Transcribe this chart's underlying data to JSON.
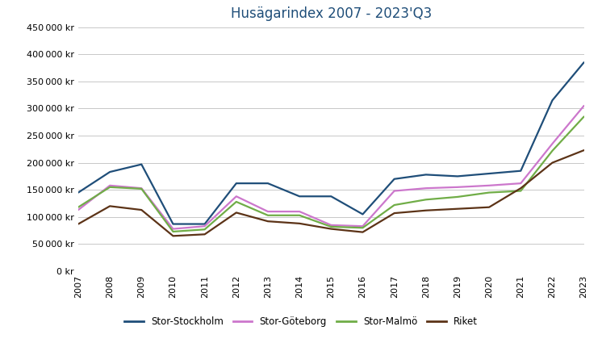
{
  "title": "Husägarindex 2007 - 2023'Q3",
  "title_color": "#1F4E79",
  "years": [
    2007,
    2008,
    2009,
    2010,
    2011,
    2012,
    2013,
    2014,
    2015,
    2016,
    2017,
    2018,
    2019,
    2020,
    2021,
    2022,
    2023
  ],
  "series": {
    "Stor-Stockholm": {
      "color": "#1F4E79",
      "values": [
        145000,
        183000,
        197000,
        87000,
        87000,
        162000,
        162000,
        138000,
        138000,
        105000,
        170000,
        178000,
        175000,
        180000,
        185000,
        315000,
        385000
      ]
    },
    "Stor-Göteborg": {
      "color": "#CC77CC",
      "values": [
        113000,
        158000,
        153000,
        78000,
        83000,
        138000,
        110000,
        110000,
        85000,
        83000,
        148000,
        153000,
        155000,
        158000,
        162000,
        235000,
        305000
      ]
    },
    "Stor-Malmö": {
      "color": "#70AD47",
      "values": [
        118000,
        155000,
        152000,
        73000,
        77000,
        128000,
        103000,
        103000,
        82000,
        80000,
        122000,
        132000,
        137000,
        145000,
        148000,
        222000,
        285000
      ]
    },
    "Riket": {
      "color": "#5C3317",
      "values": [
        87000,
        120000,
        113000,
        65000,
        68000,
        108000,
        92000,
        88000,
        78000,
        72000,
        107000,
        112000,
        115000,
        118000,
        153000,
        200000,
        223000
      ]
    }
  },
  "ylim": [
    0,
    450000
  ],
  "yticks": [
    0,
    50000,
    100000,
    150000,
    200000,
    250000,
    300000,
    350000,
    400000,
    450000
  ],
  "background_color": "#FFFFFF",
  "grid_color": "#C8C8C8",
  "legend_ncol": 4,
  "title_fontsize": 12,
  "tick_fontsize": 8,
  "linewidth": 1.6
}
